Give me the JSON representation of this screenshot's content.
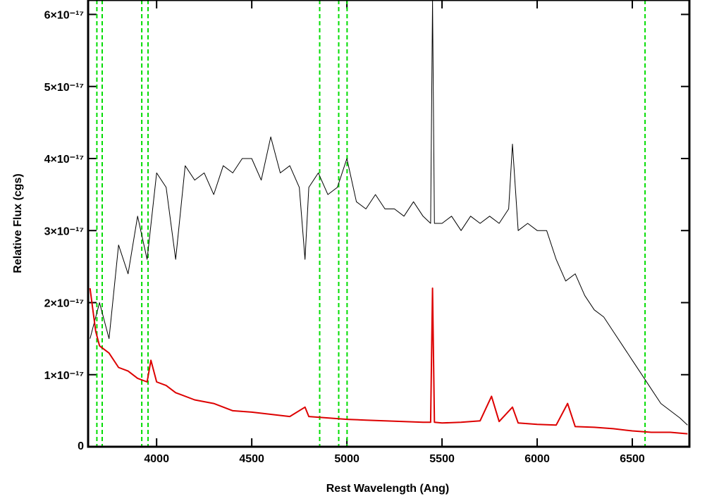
{
  "chart_data": {
    "type": "line",
    "xlabel": "Rest Wavelength (Ang)",
    "ylabel": "Relative Flux (cgs)",
    "xlim": [
      3640,
      6800
    ],
    "ylim": [
      0,
      6.2e-17
    ],
    "xticks": [
      4000,
      4500,
      5000,
      5500,
      6000,
      6500
    ],
    "yticks": [
      0,
      {
        "value": 1e-17,
        "label": "1×10⁻¹⁷"
      },
      {
        "value": 2e-17,
        "label": "2×10⁻¹⁷"
      },
      {
        "value": 3e-17,
        "label": "3×10⁻¹⁷"
      },
      {
        "value": 4e-17,
        "label": "4×10⁻¹⁷"
      },
      {
        "value": 5e-17,
        "label": "5×10⁻¹⁷"
      },
      {
        "value": 6e-17,
        "label": "6×10⁻¹⁷"
      }
    ],
    "vlines": {
      "color": "#00dd00",
      "x": [
        3686,
        3714,
        3922,
        3955,
        4857,
        4957,
        5001,
        6567
      ]
    },
    "series": [
      {
        "color": "#000000",
        "x": [
          3650,
          3700,
          3750,
          3800,
          3850,
          3900,
          3950,
          4000,
          4050,
          4100,
          4150,
          4200,
          4250,
          4300,
          4350,
          4400,
          4450,
          4500,
          4550,
          4600,
          4650,
          4700,
          4750,
          4780,
          4800,
          4850,
          4900,
          4950,
          5000,
          5050,
          5100,
          5150,
          5200,
          5250,
          5300,
          5350,
          5400,
          5440,
          5450,
          5460,
          5500,
          5550,
          5600,
          5650,
          5700,
          5750,
          5800,
          5850,
          5870,
          5900,
          5950,
          6000,
          6050,
          6100,
          6150,
          6200,
          6250,
          6300,
          6350,
          6400,
          6450,
          6500,
          6550,
          6600,
          6650,
          6700,
          6750,
          6790
        ],
        "values": [
          1.5e-17,
          2e-17,
          1.5e-17,
          2.8e-17,
          2.4e-17,
          3.2e-17,
          2.6e-17,
          3.8e-17,
          3.6e-17,
          2.6e-17,
          3.9e-17,
          3.7e-17,
          3.8e-17,
          3.5e-17,
          3.9e-17,
          3.8e-17,
          4e-17,
          4e-17,
          3.7e-17,
          4.3e-17,
          3.8e-17,
          3.9e-17,
          3.6e-17,
          2.6e-17,
          3.6e-17,
          3.8e-17,
          3.5e-17,
          3.6e-17,
          4e-17,
          3.4e-17,
          3.3e-17,
          3.5e-17,
          3.3e-17,
          3.3e-17,
          3.2e-17,
          3.4e-17,
          3.2e-17,
          3.1e-17,
          6.2e-17,
          3.1e-17,
          3.1e-17,
          3.2e-17,
          3e-17,
          3.2e-17,
          3.1e-17,
          3.2e-17,
          3.1e-17,
          3.3e-17,
          4.2e-17,
          3e-17,
          3.1e-17,
          3e-17,
          3e-17,
          2.6e-17,
          2.3e-17,
          2.4e-17,
          2.1e-17,
          1.9e-17,
          1.8e-17,
          1.6e-17,
          1.4e-17,
          1.2e-17,
          1e-17,
          8e-18,
          6e-18,
          5e-18,
          4e-18,
          3e-18
        ]
      },
      {
        "color": "#dd0000",
        "x": [
          3650,
          3680,
          3700,
          3750,
          3800,
          3850,
          3900,
          3950,
          3970,
          4000,
          4050,
          4100,
          4200,
          4300,
          4400,
          4500,
          4600,
          4700,
          4780,
          4800,
          4900,
          5000,
          5100,
          5200,
          5300,
          5400,
          5440,
          5450,
          5460,
          5500,
          5600,
          5700,
          5760,
          5800,
          5870,
          5900,
          6000,
          6100,
          6160,
          6200,
          6300,
          6400,
          6500,
          6600,
          6700,
          6790
        ],
        "values": [
          2.2e-17,
          1.6e-17,
          1.4e-17,
          1.3e-17,
          1.1e-17,
          1.05e-17,
          9.5e-18,
          9e-18,
          1.2e-17,
          9e-18,
          8.5e-18,
          7.5e-18,
          6.5e-18,
          6e-18,
          5e-18,
          4.8e-18,
          4.5e-18,
          4.2e-18,
          5.5e-18,
          4.2e-18,
          4e-18,
          3.8e-18,
          3.7e-18,
          3.6e-18,
          3.5e-18,
          3.4e-18,
          3.4e-18,
          2.2e-17,
          3.4e-18,
          3.3e-18,
          3.4e-18,
          3.6e-18,
          7e-18,
          3.5e-18,
          5.5e-18,
          3.3e-18,
          3.1e-18,
          3e-18,
          6e-18,
          2.8e-18,
          2.7e-18,
          2.5e-18,
          2.2e-18,
          2e-18,
          2e-18,
          1.8e-18
        ]
      }
    ]
  }
}
